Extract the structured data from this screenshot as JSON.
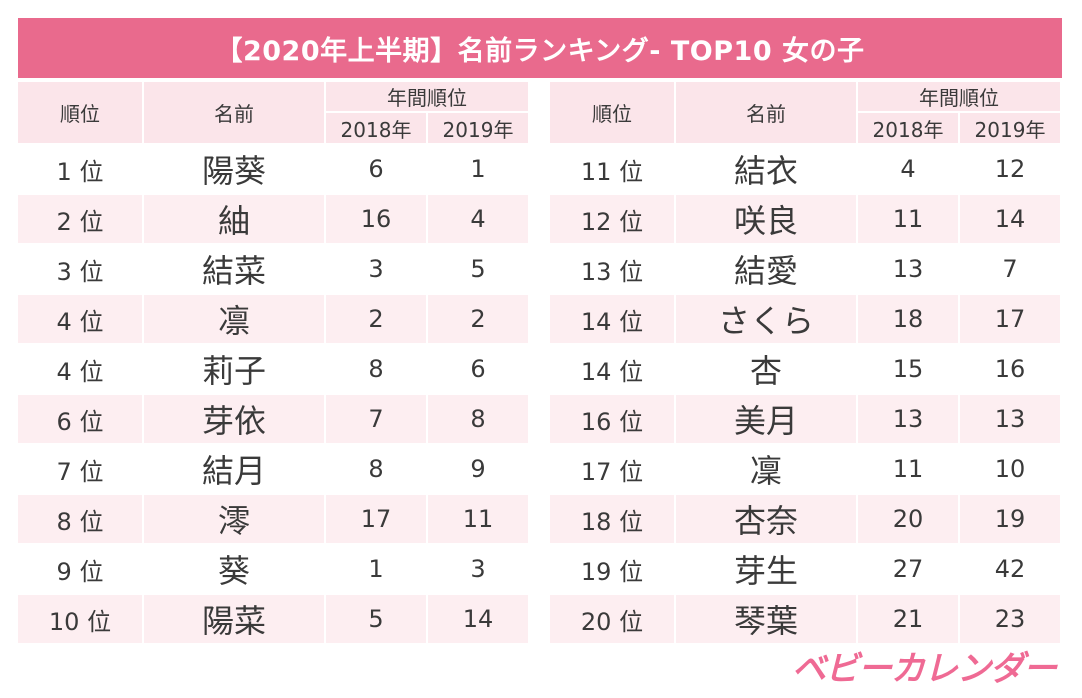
{
  "title": "【2020年上半期】名前ランキング- TOP10 女の子",
  "headers": {
    "rank": "順位",
    "name": "名前",
    "annual": "年間順位",
    "y2018": "2018年",
    "y2019": "2019年"
  },
  "left_rows": [
    {
      "rank": "1 位",
      "name": "陽葵",
      "y2018": "6",
      "y2019": "1"
    },
    {
      "rank": "2 位",
      "name": "紬",
      "y2018": "16",
      "y2019": "4"
    },
    {
      "rank": "3 位",
      "name": "結菜",
      "y2018": "3",
      "y2019": "5"
    },
    {
      "rank": "4 位",
      "name": "凛",
      "y2018": "2",
      "y2019": "2"
    },
    {
      "rank": "4 位",
      "name": "莉子",
      "y2018": "8",
      "y2019": "6"
    },
    {
      "rank": "6 位",
      "name": "芽依",
      "y2018": "7",
      "y2019": "8"
    },
    {
      "rank": "7 位",
      "name": "結月",
      "y2018": "8",
      "y2019": "9"
    },
    {
      "rank": "8 位",
      "name": "澪",
      "y2018": "17",
      "y2019": "11"
    },
    {
      "rank": "9 位",
      "name": "葵",
      "y2018": "1",
      "y2019": "3"
    },
    {
      "rank": "10 位",
      "name": "陽菜",
      "y2018": "5",
      "y2019": "14"
    }
  ],
  "right_rows": [
    {
      "rank": "11 位",
      "name": "結衣",
      "y2018": "4",
      "y2019": "12"
    },
    {
      "rank": "12 位",
      "name": "咲良",
      "y2018": "11",
      "y2019": "14"
    },
    {
      "rank": "13 位",
      "name": "結愛",
      "y2018": "13",
      "y2019": "7"
    },
    {
      "rank": "14 位",
      "name": "さくら",
      "y2018": "18",
      "y2019": "17"
    },
    {
      "rank": "14 位",
      "name": "杏",
      "y2018": "15",
      "y2019": "16"
    },
    {
      "rank": "16 位",
      "name": "美月",
      "y2018": "13",
      "y2019": "13"
    },
    {
      "rank": "17 位",
      "name": "凜",
      "y2018": "11",
      "y2019": "10"
    },
    {
      "rank": "18 位",
      "name": "杏奈",
      "y2018": "20",
      "y2019": "19"
    },
    {
      "rank": "19 位",
      "name": "芽生",
      "y2018": "27",
      "y2019": "42"
    },
    {
      "rank": "20 位",
      "name": "琴葉",
      "y2018": "21",
      "y2019": "23"
    }
  ],
  "logo": "ベビーカレンダー",
  "colors": {
    "accent": "#e96a8d",
    "header_bg": "#fbe5ea",
    "stripe": "#fdeef1",
    "logo": "#ef6a94"
  }
}
